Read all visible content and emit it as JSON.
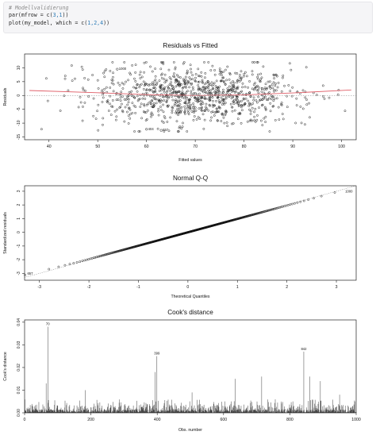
{
  "code": {
    "comment": "# Modellvalidierung",
    "line1_pre": "par(mfrow = c(",
    "line1_args": "3,1",
    "line1_post": "))",
    "line2_pre": "plot(my_model, which = c(",
    "line2_args": "1,2,4",
    "line2_post": "))"
  },
  "chart_data": [
    {
      "type": "scatter",
      "title": "Residuals vs Fitted",
      "xlabel": "Fitted values",
      "ylabel": "Residuals",
      "xlim": [
        35,
        103
      ],
      "ylim": [
        -16,
        15
      ],
      "xticks": [
        40,
        50,
        60,
        70,
        80,
        90,
        100
      ],
      "yticks": [
        -15,
        -10,
        -5,
        0,
        5,
        10
      ],
      "grid": false,
      "points_approx_count": 1000,
      "fitted_mean": 70,
      "fitted_sd": 11,
      "residual_sd": 5,
      "smooth_line": {
        "color": "#e0606a",
        "x": [
          36,
          50,
          60,
          70,
          80,
          90,
          102
        ],
        "y": [
          1.8,
          1.0,
          0.3,
          0.0,
          0.2,
          0.9,
          2.0
        ]
      },
      "labeled_points": [
        {
          "label": "1000",
          "x": 54,
          "y": 9.5
        },
        {
          "label": "404",
          "x": 60,
          "y": -12.2
        },
        {
          "label": "657",
          "x": 63,
          "y": -12.6
        }
      ]
    },
    {
      "type": "scatter",
      "title": "Normal Q-Q",
      "xlabel": "Theoretical Quantiles",
      "ylabel": "Standardized residuals",
      "xlim": [
        -3.3,
        3.4
      ],
      "ylim": [
        -3.5,
        3.4
      ],
      "xticks": [
        -3,
        -2,
        -1,
        0,
        1,
        2,
        3
      ],
      "yticks": [
        -3,
        -2,
        -1,
        0,
        1,
        2,
        3
      ],
      "grid": false,
      "reference_line": {
        "style": "dotted",
        "x": [
          -3.3,
          3.4
        ],
        "y": [
          -3.3,
          3.4
        ]
      },
      "labeled_points": [
        {
          "label": "1000",
          "x": 3.2,
          "y": 3.0
        },
        {
          "label": "657",
          "x": -3.1,
          "y": -3.0
        }
      ]
    },
    {
      "type": "bar",
      "title": "Cook's distance",
      "xlabel": "Obs. number",
      "ylabel": "Cook's distance",
      "xlim": [
        0,
        1000
      ],
      "ylim": [
        0,
        0.041
      ],
      "xticks": [
        0,
        200,
        400,
        600,
        800,
        1000
      ],
      "yticks": [
        0.0,
        0.01,
        0.02,
        0.03,
        0.04
      ],
      "grid": false,
      "n_obs": 1000,
      "typical_max": 0.006,
      "spikes": [
        {
          "x": 70,
          "y": 0.038
        },
        {
          "x": 399,
          "y": 0.025
        },
        {
          "x": 842,
          "y": 0.027
        },
        {
          "x": 65,
          "y": 0.013
        },
        {
          "x": 393,
          "y": 0.018
        },
        {
          "x": 635,
          "y": 0.015
        },
        {
          "x": 715,
          "y": 0.016
        },
        {
          "x": 860,
          "y": 0.016
        },
        {
          "x": 892,
          "y": 0.014
        },
        {
          "x": 183,
          "y": 0.01
        },
        {
          "x": 505,
          "y": 0.009
        },
        {
          "x": 950,
          "y": 0.008
        }
      ],
      "labeled_bars": [
        {
          "label": "70",
          "x": 70,
          "y": 0.038
        },
        {
          "label": "399",
          "x": 399,
          "y": 0.025
        },
        {
          "label": "842",
          "x": 842,
          "y": 0.027
        }
      ]
    }
  ]
}
